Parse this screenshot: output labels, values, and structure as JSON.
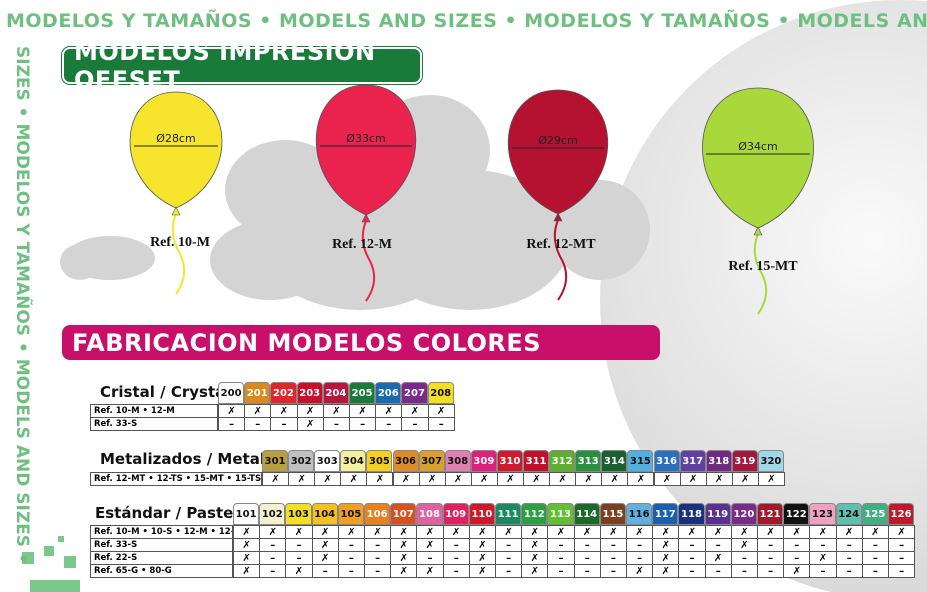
{
  "banner_top": "MODELOS Y TAMAÑOS • MODELS AND SIZES • MODELOS Y TAMAÑOS • MODELS AND",
  "banner_side": "SIZES • MODELOS Y TAMAÑOS • MODELS AND SIZES •",
  "section1": {
    "title": "MODELOS IMPRESION OFFSET"
  },
  "balloons": [
    {
      "diameter": "Ø28cm",
      "ref": "Ref. 10-M",
      "color": "#f6e52c"
    },
    {
      "diameter": "Ø33cm",
      "ref": "Ref. 12-M",
      "color": "#e9224e"
    },
    {
      "diameter": "Ø29cm",
      "ref": "Ref. 12-MT",
      "color": "#b51232"
    },
    {
      "diameter": "Ø34cm",
      "ref": "Ref. 15-MT",
      "color": "#a9d83c"
    }
  ],
  "section2": {
    "title": "FABRICACION MODELOS COLORES"
  },
  "tables": [
    {
      "title": "Cristal / Crystal",
      "codes": [
        {
          "code": "200",
          "color": "#ffffff"
        },
        {
          "code": "201",
          "color": "#d98a1a"
        },
        {
          "code": "202",
          "color": "#e0262a"
        },
        {
          "code": "203",
          "color": "#c8102e"
        },
        {
          "code": "204",
          "color": "#b8163c"
        },
        {
          "code": "205",
          "color": "#1a7a3a"
        },
        {
          "code": "206",
          "color": "#1a6ab0"
        },
        {
          "code": "207",
          "color": "#7a2a8a"
        },
        {
          "code": "208",
          "color": "#f5e020"
        }
      ],
      "rows": [
        {
          "label": "Ref. 10-M • 12-M",
          "cells": [
            "✗",
            "✗",
            "✗",
            "✗",
            "✗",
            "✗",
            "✗",
            "✗",
            "✗"
          ]
        },
        {
          "label": "Ref. 33-S",
          "cells": [
            "–",
            "–",
            "–",
            "✗",
            "–",
            "–",
            "–",
            "–",
            "–"
          ]
        }
      ]
    },
    {
      "title": "Metalizados / Metallic",
      "codes": [
        {
          "code": "301",
          "color": "#b8a040"
        },
        {
          "code": "302",
          "color": "#c0c0c0"
        },
        {
          "code": "303",
          "color": "#ffffff"
        },
        {
          "code": "304",
          "color": "#f5f0a0"
        },
        {
          "code": "305",
          "color": "#f5d020"
        },
        {
          "code": "306",
          "color": "#e08a2a"
        },
        {
          "code": "307",
          "color": "#d9a030"
        },
        {
          "code": "308",
          "color": "#e080b0"
        },
        {
          "code": "309",
          "color": "#e0207a"
        },
        {
          "code": "310",
          "color": "#d01a30"
        },
        {
          "code": "311",
          "color": "#c0102a"
        },
        {
          "code": "312",
          "color": "#5cb030"
        },
        {
          "code": "313",
          "color": "#2a9040"
        },
        {
          "code": "314",
          "color": "#1a6030"
        },
        {
          "code": "315",
          "color": "#50b0e0"
        },
        {
          "code": "316",
          "color": "#2a70c0"
        },
        {
          "code": "317",
          "color": "#6040a0"
        },
        {
          "code": "318",
          "color": "#702a80"
        },
        {
          "code": "319",
          "color": "#a01a40"
        },
        {
          "code": "320",
          "color": "#a0d8e8"
        }
      ],
      "rows": [
        {
          "label": "Ref. 12-MT • 12-TS • 15-MT • 15-TS",
          "cells": [
            "✗",
            "✗",
            "✗",
            "✗",
            "✗",
            "✗",
            "✗",
            "✗",
            "✗",
            "✗",
            "✗",
            "✗",
            "✗",
            "✗",
            "✗",
            "✗",
            "✗",
            "✗",
            "✗",
            "✗"
          ]
        }
      ]
    },
    {
      "title": "Estándar / Pastel",
      "codes": [
        {
          "code": "101",
          "color": "#ffffff"
        },
        {
          "code": "102",
          "color": "#f5f0d0"
        },
        {
          "code": "103",
          "color": "#f5e020"
        },
        {
          "code": "104",
          "color": "#f5c020"
        },
        {
          "code": "105",
          "color": "#f0a020"
        },
        {
          "code": "106",
          "color": "#e88020"
        },
        {
          "code": "107",
          "color": "#d85020"
        },
        {
          "code": "108",
          "color": "#e060a0"
        },
        {
          "code": "109",
          "color": "#e02060"
        },
        {
          "code": "110",
          "color": "#d0182a"
        },
        {
          "code": "111",
          "color": "#1a8a60"
        },
        {
          "code": "112",
          "color": "#2aa040"
        },
        {
          "code": "113",
          "color": "#60c030"
        },
        {
          "code": "114",
          "color": "#1a6a2a"
        },
        {
          "code": "115",
          "color": "#7a4020"
        },
        {
          "code": "116",
          "color": "#60b0e0"
        },
        {
          "code": "117",
          "color": "#1a60b0"
        },
        {
          "code": "118",
          "color": "#1a3080"
        },
        {
          "code": "119",
          "color": "#5a3090"
        },
        {
          "code": "120",
          "color": "#7a2a8a"
        },
        {
          "code": "121",
          "color": "#a01a2a"
        },
        {
          "code": "122",
          "color": "#111111"
        },
        {
          "code": "123",
          "color": "#f0a0c0"
        },
        {
          "code": "124",
          "color": "#60c0b0"
        },
        {
          "code": "125",
          "color": "#40b080"
        },
        {
          "code": "126",
          "color": "#c01a2a"
        }
      ],
      "rows": [
        {
          "label": "Ref. 10-M • 10-S • 12-M • 12-S",
          "cells": [
            "✗",
            "✗",
            "✗",
            "✗",
            "✗",
            "✗",
            "✗",
            "✗",
            "✗",
            "✗",
            "✗",
            "✗",
            "✗",
            "✗",
            "✗",
            "✗",
            "✗",
            "✗",
            "✗",
            "✗",
            "✗",
            "✗",
            "✗",
            "✗",
            "✗",
            "✗"
          ]
        },
        {
          "label": "Ref. 33-S",
          "cells": [
            "✗",
            "–",
            "–",
            "✗",
            "–",
            "–",
            "✗",
            "✗",
            "–",
            "✗",
            "–",
            "✗",
            "–",
            "–",
            "–",
            "–",
            "✗",
            "–",
            "–",
            "✗",
            "–",
            "–",
            "–",
            "–",
            "–",
            "–"
          ]
        },
        {
          "label": "Ref. 22-S",
          "cells": [
            "✗",
            "–",
            "–",
            "✗",
            "–",
            "–",
            "✗",
            "–",
            "–",
            "✗",
            "–",
            "✗",
            "–",
            "–",
            "–",
            "–",
            "✗",
            "–",
            "✗",
            "–",
            "–",
            "–",
            "✗",
            "–",
            "–",
            "–"
          ]
        },
        {
          "label": "Ref. 65-G • 80-G",
          "cells": [
            "✗",
            "–",
            "✗",
            "–",
            "–",
            "–",
            "✗",
            "✗",
            "–",
            "✗",
            "–",
            "✗",
            "–",
            "–",
            "–",
            "✗",
            "✗",
            "–",
            "–",
            "–",
            "–",
            "✗",
            "–",
            "–",
            "–",
            "–"
          ]
        }
      ]
    }
  ]
}
